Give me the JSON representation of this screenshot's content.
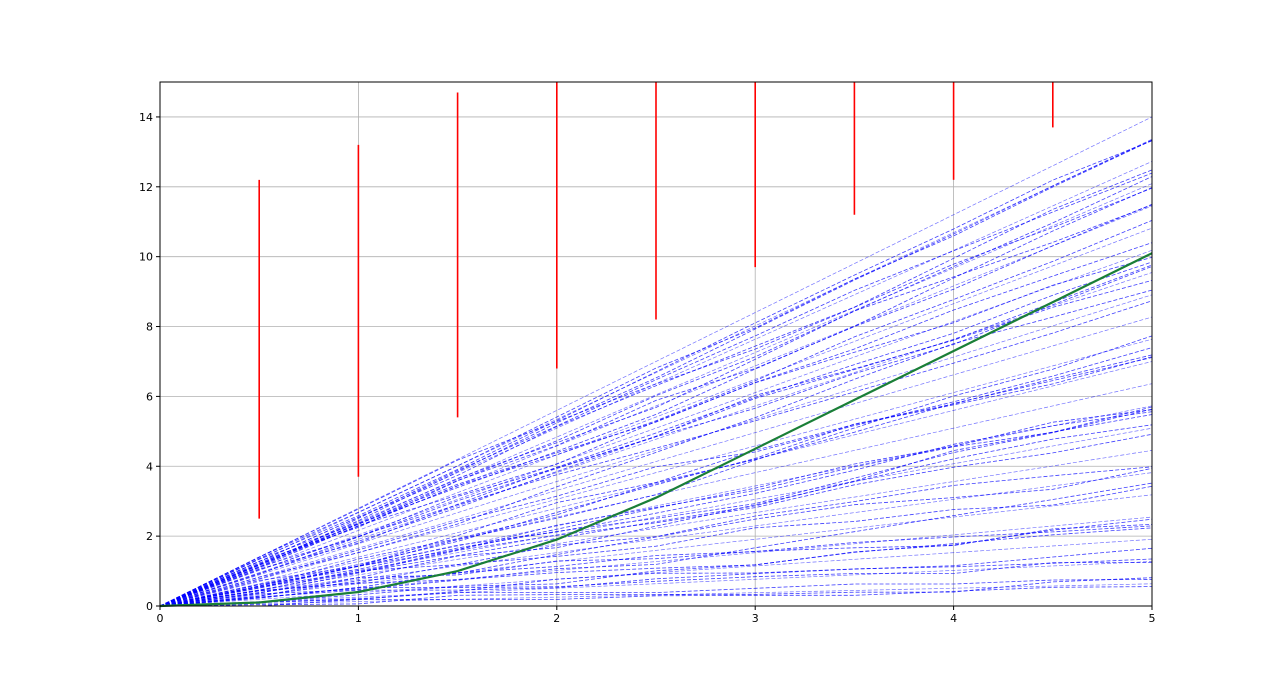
{
  "chart_data": {
    "type": "line",
    "title": "",
    "xlabel": "",
    "ylabel": "",
    "xlim": [
      0,
      5
    ],
    "ylim": [
      0,
      15
    ],
    "x_ticks": [
      "0",
      "1",
      "2",
      "3",
      "4",
      "5"
    ],
    "y_ticks": [
      "0",
      "2",
      "4",
      "6",
      "8",
      "10",
      "12",
      "14"
    ],
    "grid": true,
    "legend": "none",
    "colors": {
      "paths": "#0000ff",
      "mean": "#1a7f37",
      "bounds": "#ff0000",
      "grid": "#b0b0b0",
      "axes": "#000000"
    },
    "series": [
      {
        "style": "solid",
        "x": [
          0,
          0.5,
          1,
          1.5,
          2,
          2.5,
          3,
          3.5,
          4,
          4.5,
          5
        ],
        "y": [
          0,
          0.1,
          0.4,
          1.0,
          1.9,
          3.1,
          4.5,
          5.9,
          7.3,
          8.7,
          10.1
        ]
      }
    ],
    "vertical_segments": [
      {
        "x": 0.5,
        "y": [
          2.5,
          12.2
        ]
      },
      {
        "x": 1.0,
        "y": [
          3.7,
          13.2
        ]
      },
      {
        "x": 1.5,
        "y": [
          5.4,
          14.7
        ]
      },
      {
        "x": 2.0,
        "y": [
          6.8,
          15.0
        ]
      },
      {
        "x": 2.5,
        "y": [
          8.2,
          15.0
        ]
      },
      {
        "x": 3.0,
        "y": [
          9.7,
          15.0
        ]
      },
      {
        "x": 3.5,
        "y": [
          11.2,
          15.0
        ]
      },
      {
        "x": 4.0,
        "y": [
          12.2,
          15.0
        ]
      },
      {
        "x": 4.5,
        "y": [
          13.7,
          15.0
        ]
      }
    ],
    "dashed_paths": {
      "count": 45,
      "style": "dashed",
      "x_breakpoints": [
        0,
        0.5,
        1,
        1.5,
        2,
        2.5,
        3,
        3.5,
        4,
        4.5,
        5
      ],
      "y_end_range": [
        0,
        14
      ],
      "upper_envelope_slope": 2.8
    }
  }
}
